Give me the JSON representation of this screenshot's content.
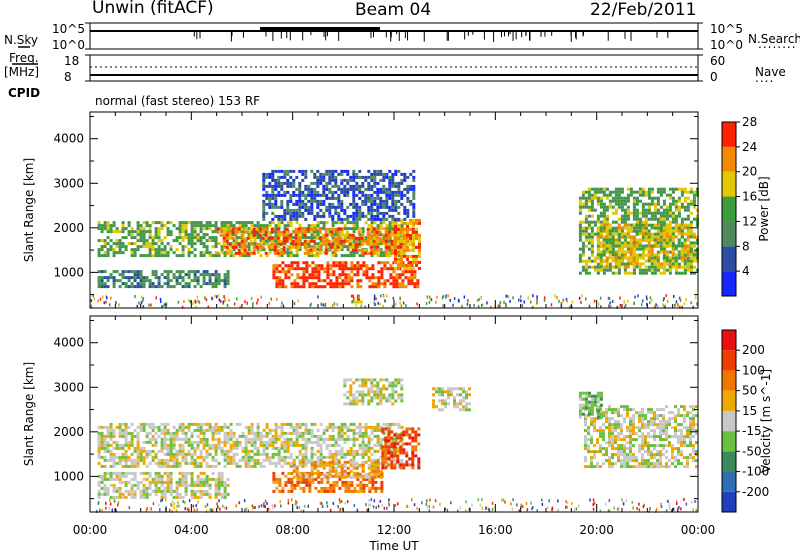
{
  "header": {
    "station": "Unwin (fitACF)",
    "beam": "Beam 04",
    "date": "22/Feb/2011"
  },
  "top_panel": {
    "left_label": "N.Sky",
    "left_ticks": [
      "10^5",
      "10^0"
    ],
    "right_ticks": [
      "10^5",
      "10^0"
    ],
    "right_label": "N.Search",
    "right_label_marker": "........"
  },
  "freq_panel": {
    "left_label_1": "Freq.",
    "left_label_2": "[MHz]",
    "left_ticks": [
      "18",
      "8"
    ],
    "right_ticks": [
      "60",
      "0"
    ],
    "right_label": "Nave",
    "right_label_marker": "....",
    "cpid_label": "CPID",
    "cpid_text": "normal (fast stereo) 153 RF"
  },
  "chart_data": [
    {
      "type": "heatmap",
      "title": "",
      "xlabel": "Time UT",
      "ylabel": "Slant Range [km]",
      "x_ticks": [
        "00:00",
        "04:00",
        "08:00",
        "12:00",
        "16:00",
        "20:00",
        "00:00"
      ],
      "y_ticks": [
        "1000",
        "2000",
        "3000",
        "4000"
      ],
      "xlim_hours": [
        0,
        24
      ],
      "ylim_km": [
        200,
        4600
      ],
      "colorbar": {
        "label": "Power [dB]",
        "ticks": [
          "4",
          "8",
          "12",
          "16",
          "20",
          "24",
          "28"
        ],
        "colors": [
          "#1528ff",
          "#2d4ca6",
          "#4d8a5c",
          "#3c9d3c",
          "#e3c700",
          "#f28a00",
          "#ff2200"
        ]
      },
      "regions": [
        {
          "t0": 0.3,
          "t1": 12.3,
          "r0": 1350,
          "r1": 2150,
          "level": 3
        },
        {
          "t0": 5.0,
          "t1": 12.8,
          "r0": 1450,
          "r1": 2000,
          "level": 5
        },
        {
          "t0": 0.3,
          "t1": 5.5,
          "r0": 650,
          "r1": 1050,
          "level": 2
        },
        {
          "t0": 7.2,
          "t1": 13.0,
          "r0": 700,
          "r1": 1250,
          "level": 6
        },
        {
          "t0": 12.0,
          "t1": 13.0,
          "r0": 1100,
          "r1": 2200,
          "level": 5
        },
        {
          "t0": 6.8,
          "t1": 12.8,
          "r0": 2200,
          "r1": 3300,
          "level": 1
        },
        {
          "t0": 10.3,
          "t1": 10.8,
          "r0": 350,
          "r1": 500,
          "level": 5
        },
        {
          "t0": 19.3,
          "t1": 24.0,
          "r0": 1000,
          "r1": 2900,
          "level": 3
        },
        {
          "t0": 20.0,
          "t1": 23.8,
          "r0": 1100,
          "r1": 2100,
          "level": 4
        }
      ]
    },
    {
      "type": "heatmap",
      "title": "",
      "xlabel": "Time UT",
      "ylabel": "Slant Range [km]",
      "x_ticks": [
        "00:00",
        "04:00",
        "08:00",
        "12:00",
        "16:00",
        "20:00",
        "00:00"
      ],
      "y_ticks": [
        "1000",
        "2000",
        "3000",
        "4000"
      ],
      "xlim_hours": [
        0,
        24
      ],
      "ylim_km": [
        200,
        4600
      ],
      "colorbar": {
        "label": "Velocity [m s^-1]",
        "ticks": [
          "200",
          "100",
          "50",
          "15",
          "-15",
          "-50",
          "-100",
          "-200"
        ],
        "colors": [
          "#1f3fbf",
          "#2f6eb0",
          "#3a8a5a",
          "#6cc040",
          "#c8c8c8",
          "#f0a800",
          "#f07800",
          "#f03c00",
          "#e81010"
        ]
      },
      "regions": [
        {
          "t0": 0.3,
          "t1": 12.3,
          "r0": 1200,
          "r1": 2200,
          "level": 4
        },
        {
          "t0": 0.3,
          "t1": 5.5,
          "r0": 550,
          "r1": 1100,
          "level": 4
        },
        {
          "t0": 7.2,
          "t1": 11.5,
          "r0": 650,
          "r1": 1100,
          "level": 6
        },
        {
          "t0": 8.0,
          "t1": 11.5,
          "r0": 1000,
          "r1": 1350,
          "level": 5
        },
        {
          "t0": 11.5,
          "t1": 13.0,
          "r0": 1200,
          "r1": 2100,
          "level": 7
        },
        {
          "t0": 10.0,
          "t1": 12.3,
          "r0": 2600,
          "r1": 3200,
          "level": 4
        },
        {
          "t0": 19.5,
          "t1": 24.0,
          "r0": 1200,
          "r1": 2600,
          "level": 4
        },
        {
          "t0": 19.3,
          "t1": 20.2,
          "r0": 2300,
          "r1": 2900,
          "level": 3
        },
        {
          "t0": 13.5,
          "t1": 15.0,
          "r0": 2500,
          "r1": 3000,
          "level": 4
        }
      ]
    }
  ]
}
